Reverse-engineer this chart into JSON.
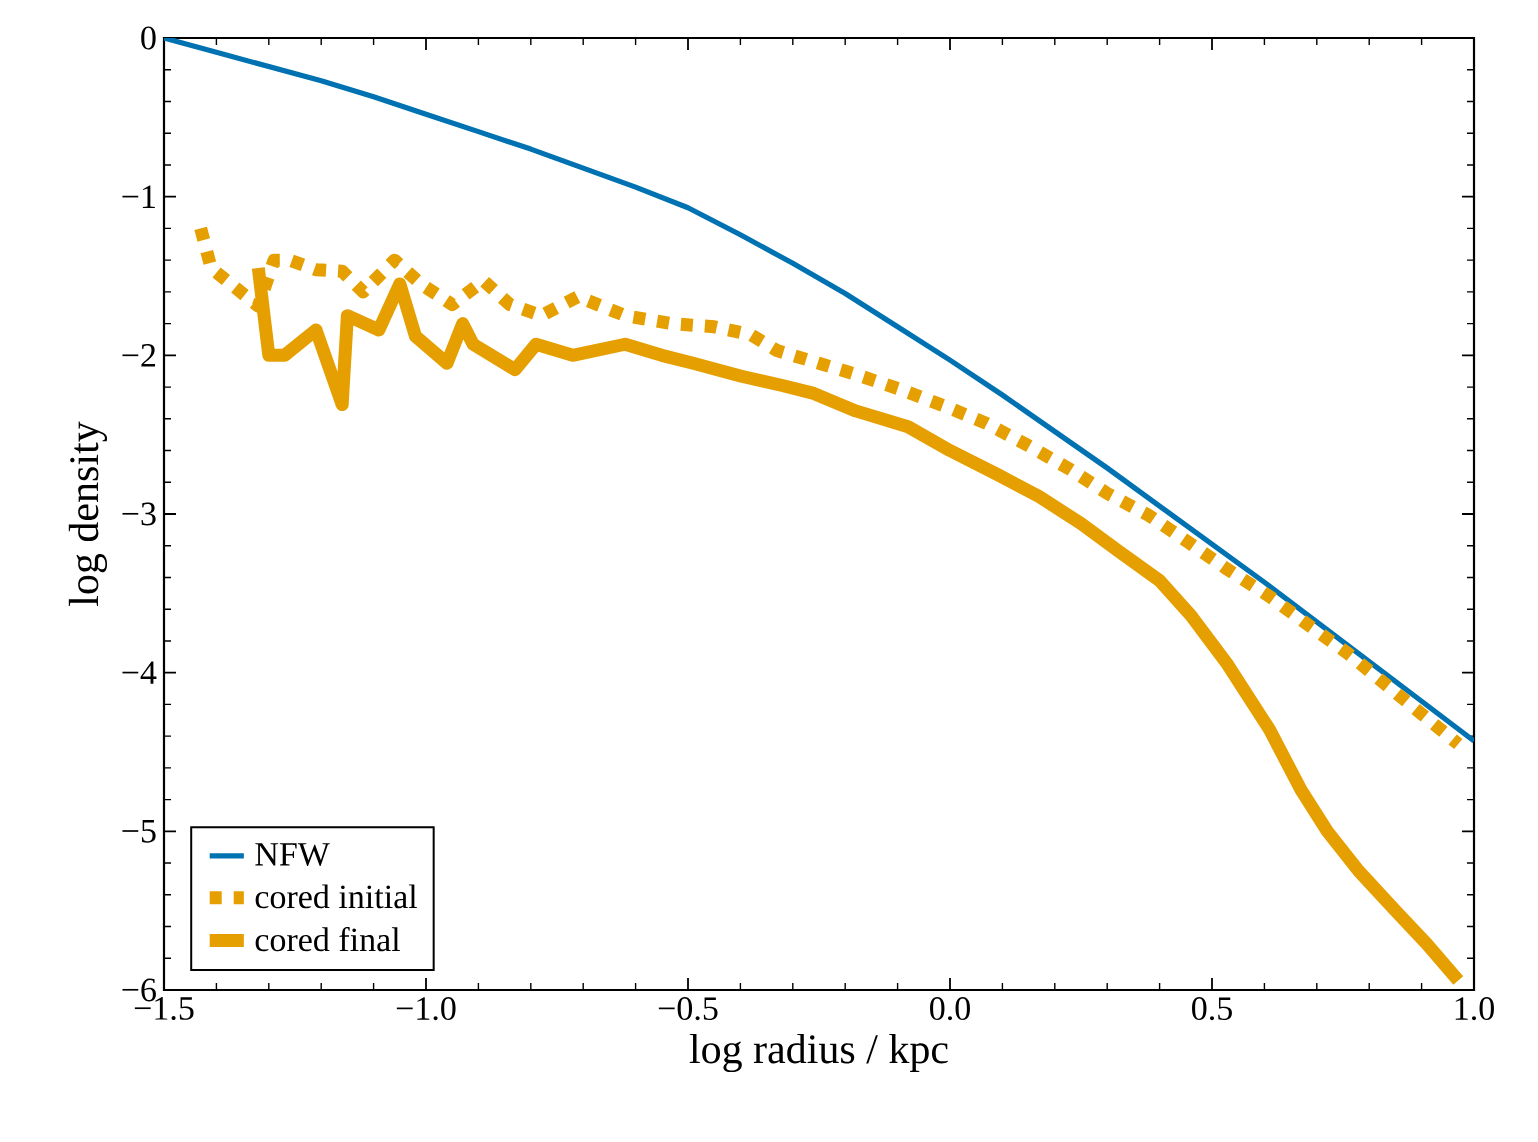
{
  "chart_data": {
    "type": "line",
    "xlabel": "log radius / kpc",
    "ylabel": "log density",
    "xlim": [
      -1.5,
      1.0
    ],
    "ylim": [
      -6,
      0
    ],
    "xticks": [
      {
        "value": -1.5,
        "label": "−1.5"
      },
      {
        "value": -1.0,
        "label": "−1.0"
      },
      {
        "value": -0.5,
        "label": "−0.5"
      },
      {
        "value": 0.0,
        "label": "0.0"
      },
      {
        "value": 0.5,
        "label": "0.5"
      },
      {
        "value": 1.0,
        "label": "1.0"
      }
    ],
    "yticks": [
      {
        "value": -6,
        "label": "−6"
      },
      {
        "value": -5,
        "label": "−5"
      },
      {
        "value": -4,
        "label": "−4"
      },
      {
        "value": -3,
        "label": "−3"
      },
      {
        "value": -2,
        "label": "−2"
      },
      {
        "value": -1,
        "label": "−1"
      },
      0
    ],
    "legend": "bottom left",
    "grid": false,
    "marker": "none",
    "series": [
      {
        "name": "NFW",
        "color": "#0072b2",
        "line_style": "solid",
        "x": [
          -1.5,
          -1.4,
          -1.3,
          -1.2,
          -1.1,
          -1.0,
          -0.9,
          -0.8,
          -0.7,
          -0.6,
          -0.5,
          -0.4,
          -0.3,
          -0.2,
          -0.1,
          0.0,
          0.1,
          0.2,
          0.3,
          0.4,
          0.5,
          0.6,
          0.7,
          0.8,
          0.9,
          1.0
        ],
        "values": [
          0,
          -0.09,
          -0.18,
          -0.27,
          -0.37,
          -0.48,
          -0.59,
          -0.7,
          -0.82,
          -0.94,
          -1.07,
          -1.24,
          -1.42,
          -1.61,
          -1.82,
          -2.03,
          -2.25,
          -2.48,
          -2.71,
          -2.95,
          -3.19,
          -3.43,
          -3.68,
          -3.93,
          -4.18,
          -4.43
        ]
      },
      {
        "name": "cored initial",
        "color": "#e69f00",
        "line_style": "dotted",
        "x": [
          -1.43,
          -1.41,
          -1.32,
          -1.29,
          -1.26,
          -1.21,
          -1.16,
          -1.12,
          -1.06,
          -1.01,
          -0.95,
          -0.89,
          -0.84,
          -0.78,
          -0.71,
          -0.62,
          -0.53,
          -0.45,
          -0.38,
          -0.33,
          -0.25,
          -0.18,
          -0.09,
          -0.01,
          0.07,
          0.15,
          0.23,
          0.3,
          0.38,
          0.46,
          0.53,
          0.61,
          0.68,
          0.76,
          0.83,
          0.9,
          0.97
        ],
        "values": [
          -1.2,
          -1.45,
          -1.69,
          -1.4,
          -1.4,
          -1.46,
          -1.47,
          -1.6,
          -1.4,
          -1.55,
          -1.68,
          -1.53,
          -1.68,
          -1.75,
          -1.63,
          -1.75,
          -1.8,
          -1.82,
          -1.87,
          -1.97,
          -2.05,
          -2.12,
          -2.22,
          -2.32,
          -2.43,
          -2.57,
          -2.72,
          -2.87,
          -3.01,
          -3.19,
          -3.35,
          -3.52,
          -3.69,
          -3.88,
          -4.07,
          -4.26,
          -4.45
        ]
      },
      {
        "name": "cored final",
        "color": "#e69f00",
        "line_style": "solid",
        "x": [
          -1.32,
          -1.3,
          -1.27,
          -1.21,
          -1.16,
          -1.15,
          -1.09,
          -1.05,
          -1.02,
          -0.96,
          -0.93,
          -0.91,
          -0.83,
          -0.79,
          -0.72,
          -0.62,
          -0.55,
          -0.49,
          -0.4,
          -0.32,
          -0.26,
          -0.18,
          -0.08,
          0.0,
          0.09,
          0.17,
          0.25,
          0.32,
          0.4,
          0.46,
          0.53,
          0.61,
          0.67,
          0.72,
          0.78,
          0.85,
          0.91,
          0.97
        ],
        "values": [
          -1.45,
          -2.0,
          -2.0,
          -1.84,
          -2.31,
          -1.75,
          -1.84,
          -1.55,
          -1.88,
          -2.05,
          -1.8,
          -1.93,
          -2.09,
          -1.93,
          -2.0,
          -1.93,
          -2.0,
          -2.05,
          -2.13,
          -2.19,
          -2.24,
          -2.35,
          -2.45,
          -2.6,
          -2.75,
          -2.89,
          -3.06,
          -3.23,
          -3.42,
          -3.64,
          -3.95,
          -4.36,
          -4.74,
          -5.0,
          -5.25,
          -5.5,
          -5.71,
          -5.94
        ]
      }
    ]
  }
}
